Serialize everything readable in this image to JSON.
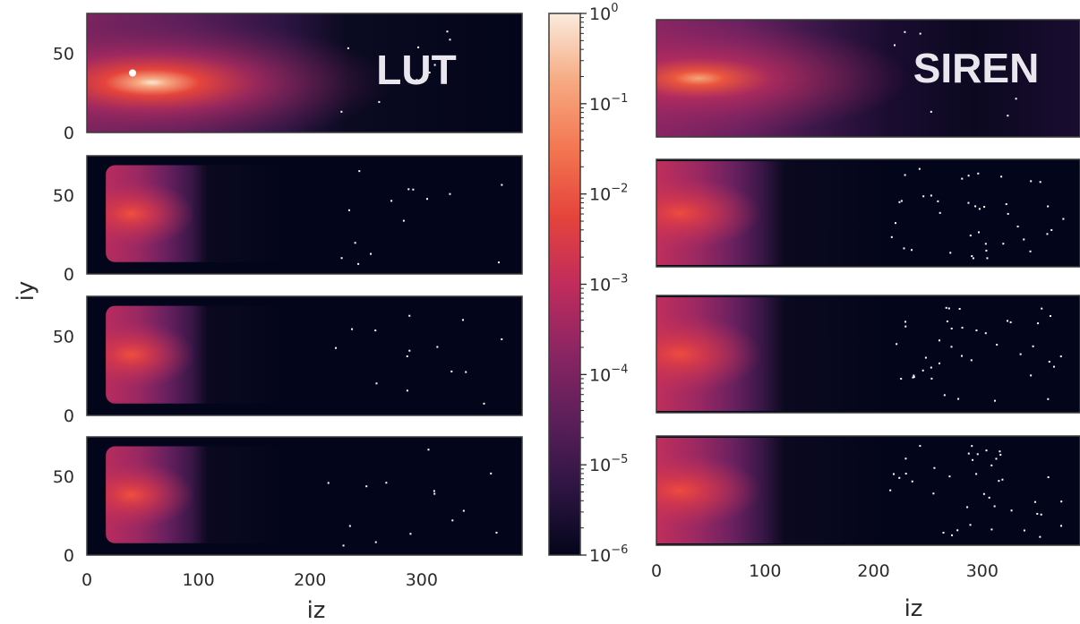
{
  "chart_data": {
    "type": "heatmap",
    "colorbar": {
      "scale": "log",
      "range": [
        1e-06,
        1
      ],
      "tick_labels": [
        {
          "base": "10",
          "exp": "0",
          "value": 1
        },
        {
          "base": "10",
          "exp": "−1",
          "value": 0.1
        },
        {
          "base": "10",
          "exp": "−2",
          "value": 0.01
        },
        {
          "base": "10",
          "exp": "−3",
          "value": 0.001
        },
        {
          "base": "10",
          "exp": "−4",
          "value": 0.0001
        },
        {
          "base": "10",
          "exp": "−5",
          "value": 1e-05
        },
        {
          "base": "10",
          "exp": "−6",
          "value": 1e-06
        }
      ],
      "colormap": [
        "#03051a",
        "#2e1543",
        "#5c1f5a",
        "#8b2563",
        "#c12c5c",
        "#e5443b",
        "#f37651",
        "#f6aa82",
        "#faebdd"
      ]
    },
    "panels": [
      {
        "title": "LUT",
        "x_ticks": [
          0,
          100,
          200,
          300
        ],
        "y_ticks": [
          0,
          50
        ],
        "xlim": [
          0,
          390
        ],
        "ylim": [
          0,
          75
        ],
        "xlabel": "iz",
        "ylabel": "iy",
        "rows": 4
      },
      {
        "title": "SIREN",
        "x_ticks": [
          0,
          100,
          200,
          300
        ],
        "xlim": [
          0,
          390
        ],
        "ylim": [
          0,
          75
        ],
        "xlabel": "iz",
        "rows": 4
      }
    ]
  }
}
